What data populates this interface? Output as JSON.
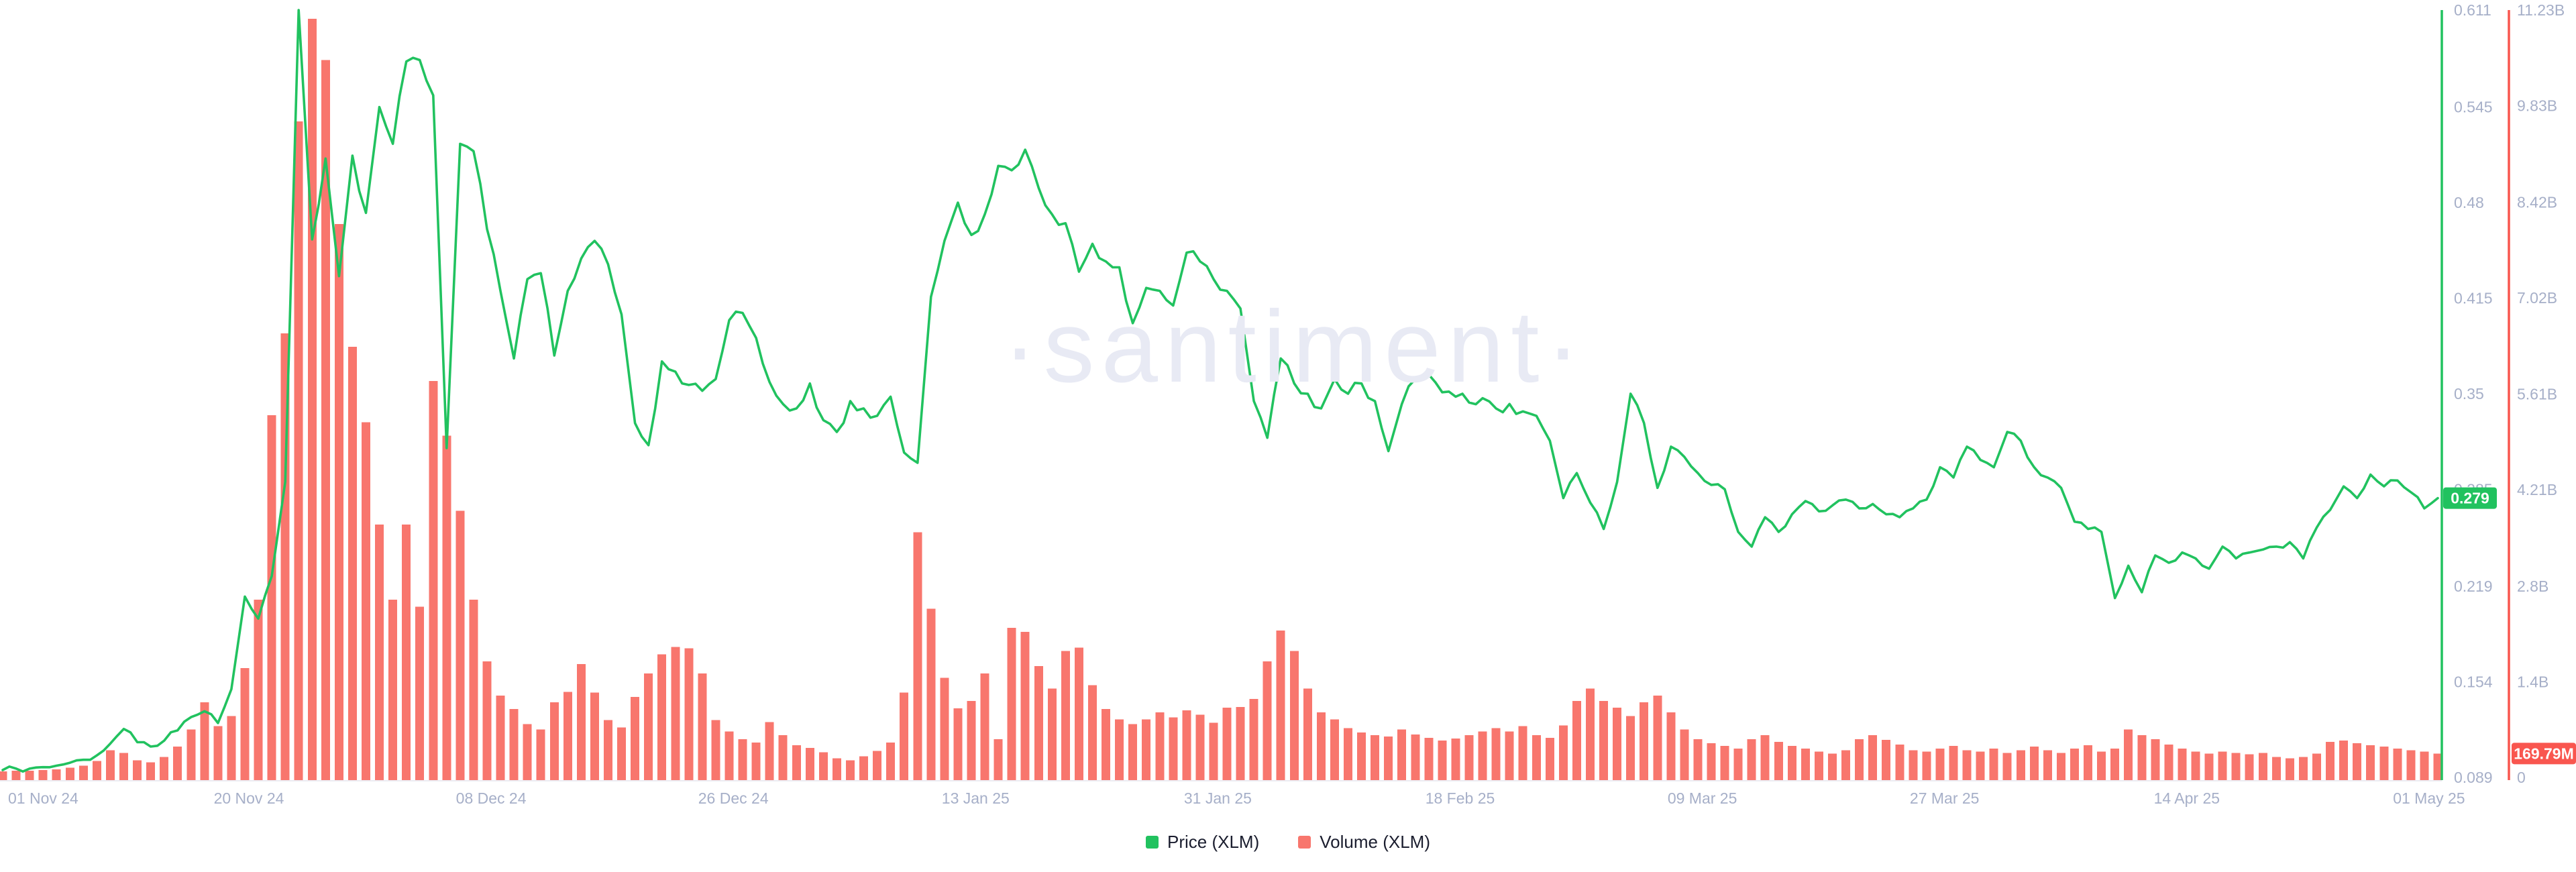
{
  "watermark": {
    "text": "·santiment·",
    "color": "#e8eaf4"
  },
  "legend": {
    "items": [
      {
        "label": "Price (XLM)",
        "color": "#21c25f"
      },
      {
        "label": "Volume (XLM)",
        "color": "#f8766d"
      }
    ]
  },
  "price_axis": {
    "color": "#21c25f",
    "tick_color": "#a6afc8",
    "ticks": [
      "0.611",
      "0.545",
      "0.48",
      "0.415",
      "0.35",
      "0.285",
      "0.219",
      "0.154",
      "0.089"
    ],
    "min": 0.089,
    "max": 0.611,
    "current_value_badge": "0.279"
  },
  "volume_axis": {
    "color": "#f9564f",
    "tick_color": "#a6afc8",
    "ticks": [
      "11.23B",
      "9.83B",
      "8.42B",
      "7.02B",
      "5.61B",
      "4.21B",
      "2.8B",
      "1.4B",
      "0"
    ],
    "min_billions": 0,
    "max_billions": 11.23,
    "current_value_badge": "169.79M"
  },
  "x_axis": {
    "tick_color": "#a6afc8",
    "labels": [
      "01 Nov 24",
      "20 Nov 24",
      "08 Dec 24",
      "26 Dec 24",
      "13 Jan 25",
      "31 Jan 25",
      "18 Feb 25",
      "09 Mar 25",
      "27 Mar 25",
      "14 Apr 25",
      "01 May 25"
    ]
  },
  "chart_data": {
    "type": "line+bar",
    "title": "",
    "x_range": [
      "01 Nov 24",
      "01 May 25"
    ],
    "interval": "daily",
    "grid": false,
    "legend_position": "bottom-center",
    "x_tick_labels": [
      "01 Nov 24",
      "20 Nov 24",
      "08 Dec 24",
      "26 Dec 24",
      "13 Jan 25",
      "31 Jan 25",
      "18 Feb 25",
      "09 Mar 25",
      "27 Mar 25",
      "14 Apr 25",
      "01 May 25"
    ],
    "price_ylim": [
      0.089,
      0.611
    ],
    "volume_ylim_billions": [
      0,
      11.23
    ],
    "series": [
      {
        "name": "Price (XLM)",
        "type": "line",
        "color": "#21c25f",
        "axis": "price",
        "last_value_label": "0.279",
        "values": [
          0.094,
          0.095,
          0.095,
          0.096,
          0.097,
          0.099,
          0.101,
          0.104,
          0.112,
          0.122,
          0.113,
          0.11,
          0.114,
          0.121,
          0.13,
          0.134,
          0.126,
          0.149,
          0.212,
          0.197,
          0.226,
          0.29,
          0.611,
          0.455,
          0.51,
          0.43,
          0.512,
          0.473,
          0.545,
          0.52,
          0.576,
          0.577,
          0.553,
          0.313,
          0.52,
          0.515,
          0.462,
          0.42,
          0.374,
          0.428,
          0.432,
          0.376,
          0.42,
          0.442,
          0.454,
          0.438,
          0.404,
          0.33,
          0.315,
          0.372,
          0.365,
          0.356,
          0.352,
          0.36,
          0.4,
          0.405,
          0.388,
          0.358,
          0.343,
          0.34,
          0.357,
          0.332,
          0.324,
          0.345,
          0.34,
          0.335,
          0.348,
          0.31,
          0.303,
          0.416,
          0.454,
          0.48,
          0.458,
          0.472,
          0.505,
          0.502,
          0.516,
          0.49,
          0.472,
          0.466,
          0.433,
          0.452,
          0.44,
          0.436,
          0.398,
          0.422,
          0.42,
          0.41,
          0.446,
          0.44,
          0.428,
          0.42,
          0.408,
          0.345,
          0.32,
          0.374,
          0.357,
          0.35,
          0.34,
          0.36,
          0.35,
          0.357,
          0.345,
          0.311,
          0.343,
          0.36,
          0.363,
          0.351,
          0.348,
          0.344,
          0.347,
          0.34,
          0.343,
          0.338,
          0.335,
          0.318,
          0.279,
          0.296,
          0.276,
          0.258,
          0.29,
          0.35,
          0.33,
          0.286,
          0.314,
          0.307,
          0.296,
          0.288,
          0.285,
          0.256,
          0.246,
          0.266,
          0.256,
          0.268,
          0.277,
          0.27,
          0.274,
          0.278,
          0.272,
          0.275,
          0.268,
          0.266,
          0.272,
          0.278,
          0.3,
          0.293,
          0.314,
          0.305,
          0.3,
          0.324,
          0.318,
          0.3,
          0.293,
          0.286,
          0.263,
          0.258,
          0.256,
          0.211,
          0.233,
          0.215,
          0.24,
          0.235,
          0.242,
          0.238,
          0.231,
          0.246,
          0.238,
          0.242,
          0.244,
          0.246,
          0.249,
          0.238,
          0.259,
          0.271,
          0.287,
          0.279,
          0.295,
          0.287,
          0.291,
          0.283,
          0.272,
          0.279
        ]
      },
      {
        "name": "Volume (XLM)",
        "type": "bar",
        "color": "#f8766d",
        "axis": "volume",
        "unit": "billions",
        "last_value_label": "169.79M",
        "values": [
          0.09,
          0.1,
          0.1,
          0.11,
          0.12,
          0.14,
          0.17,
          0.24,
          0.4,
          0.36,
          0.25,
          0.22,
          0.3,
          0.45,
          0.7,
          1.1,
          0.75,
          0.9,
          1.6,
          2.6,
          5.3,
          6.5,
          9.6,
          11.1,
          10.5,
          8.1,
          6.3,
          5.2,
          3.7,
          2.6,
          3.7,
          2.5,
          5.8,
          5.0,
          3.9,
          2.6,
          1.7,
          1.2,
          1.0,
          0.78,
          0.7,
          1.1,
          1.25,
          1.66,
          1.24,
          0.84,
          0.73,
          1.18,
          1.52,
          1.8,
          1.91,
          1.89,
          1.52,
          0.84,
          0.67,
          0.56,
          0.51,
          0.81,
          0.62,
          0.47,
          0.43,
          0.37,
          0.28,
          0.25,
          0.31,
          0.39,
          0.51,
          1.24,
          3.59,
          2.47,
          1.46,
          1.01,
          1.12,
          1.52,
          0.56,
          2.19,
          2.13,
          1.63,
          1.3,
          1.85,
          1.9,
          1.35,
          1.0,
          0.85,
          0.78,
          0.85,
          0.95,
          0.88,
          0.98,
          0.92,
          0.8,
          1.02,
          1.03,
          1.15,
          1.7,
          2.15,
          1.85,
          1.3,
          0.95,
          0.85,
          0.72,
          0.66,
          0.62,
          0.6,
          0.7,
          0.63,
          0.58,
          0.54,
          0.57,
          0.62,
          0.67,
          0.72,
          0.67,
          0.75,
          0.62,
          0.58,
          0.76,
          1.12,
          1.3,
          1.12,
          1.02,
          0.9,
          1.1,
          1.2,
          0.95,
          0.7,
          0.56,
          0.5,
          0.46,
          0.42,
          0.56,
          0.62,
          0.52,
          0.46,
          0.42,
          0.38,
          0.35,
          0.4,
          0.56,
          0.62,
          0.55,
          0.48,
          0.4,
          0.38,
          0.42,
          0.46,
          0.4,
          0.38,
          0.42,
          0.36,
          0.4,
          0.45,
          0.4,
          0.36,
          0.42,
          0.47,
          0.38,
          0.42,
          0.7,
          0.62,
          0.56,
          0.48,
          0.42,
          0.38,
          0.35,
          0.38,
          0.36,
          0.34,
          0.36,
          0.3,
          0.28,
          0.3,
          0.35,
          0.52,
          0.54,
          0.5,
          0.47,
          0.45,
          0.42,
          0.4,
          0.38,
          0.35,
          0.16979
        ]
      }
    ]
  }
}
